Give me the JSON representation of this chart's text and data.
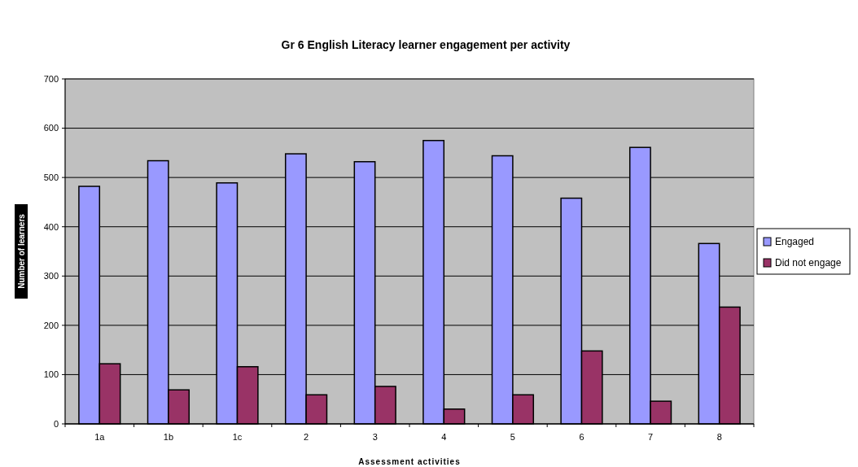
{
  "chart_data": {
    "type": "bar",
    "title": "Gr 6 English Literacy learner engagement per activity",
    "xlabel": "Assessment activities",
    "ylabel": "Number of learners",
    "categories": [
      "1a",
      "1b",
      "1c",
      "2",
      "3",
      "4",
      "5",
      "6",
      "7",
      "8"
    ],
    "series": [
      {
        "name": "Engaged",
        "color": "#9999ff",
        "values": [
          482,
          534,
          489,
          548,
          532,
          575,
          544,
          458,
          561,
          366
        ]
      },
      {
        "name": "Did not engage",
        "color": "#993366",
        "values": [
          122,
          69,
          116,
          59,
          76,
          30,
          59,
          148,
          46,
          237
        ]
      }
    ],
    "ylim": [
      0,
      700
    ],
    "yticks": [
      0,
      100,
      200,
      300,
      400,
      500,
      600,
      700
    ],
    "grid": "y",
    "legend": "right"
  }
}
